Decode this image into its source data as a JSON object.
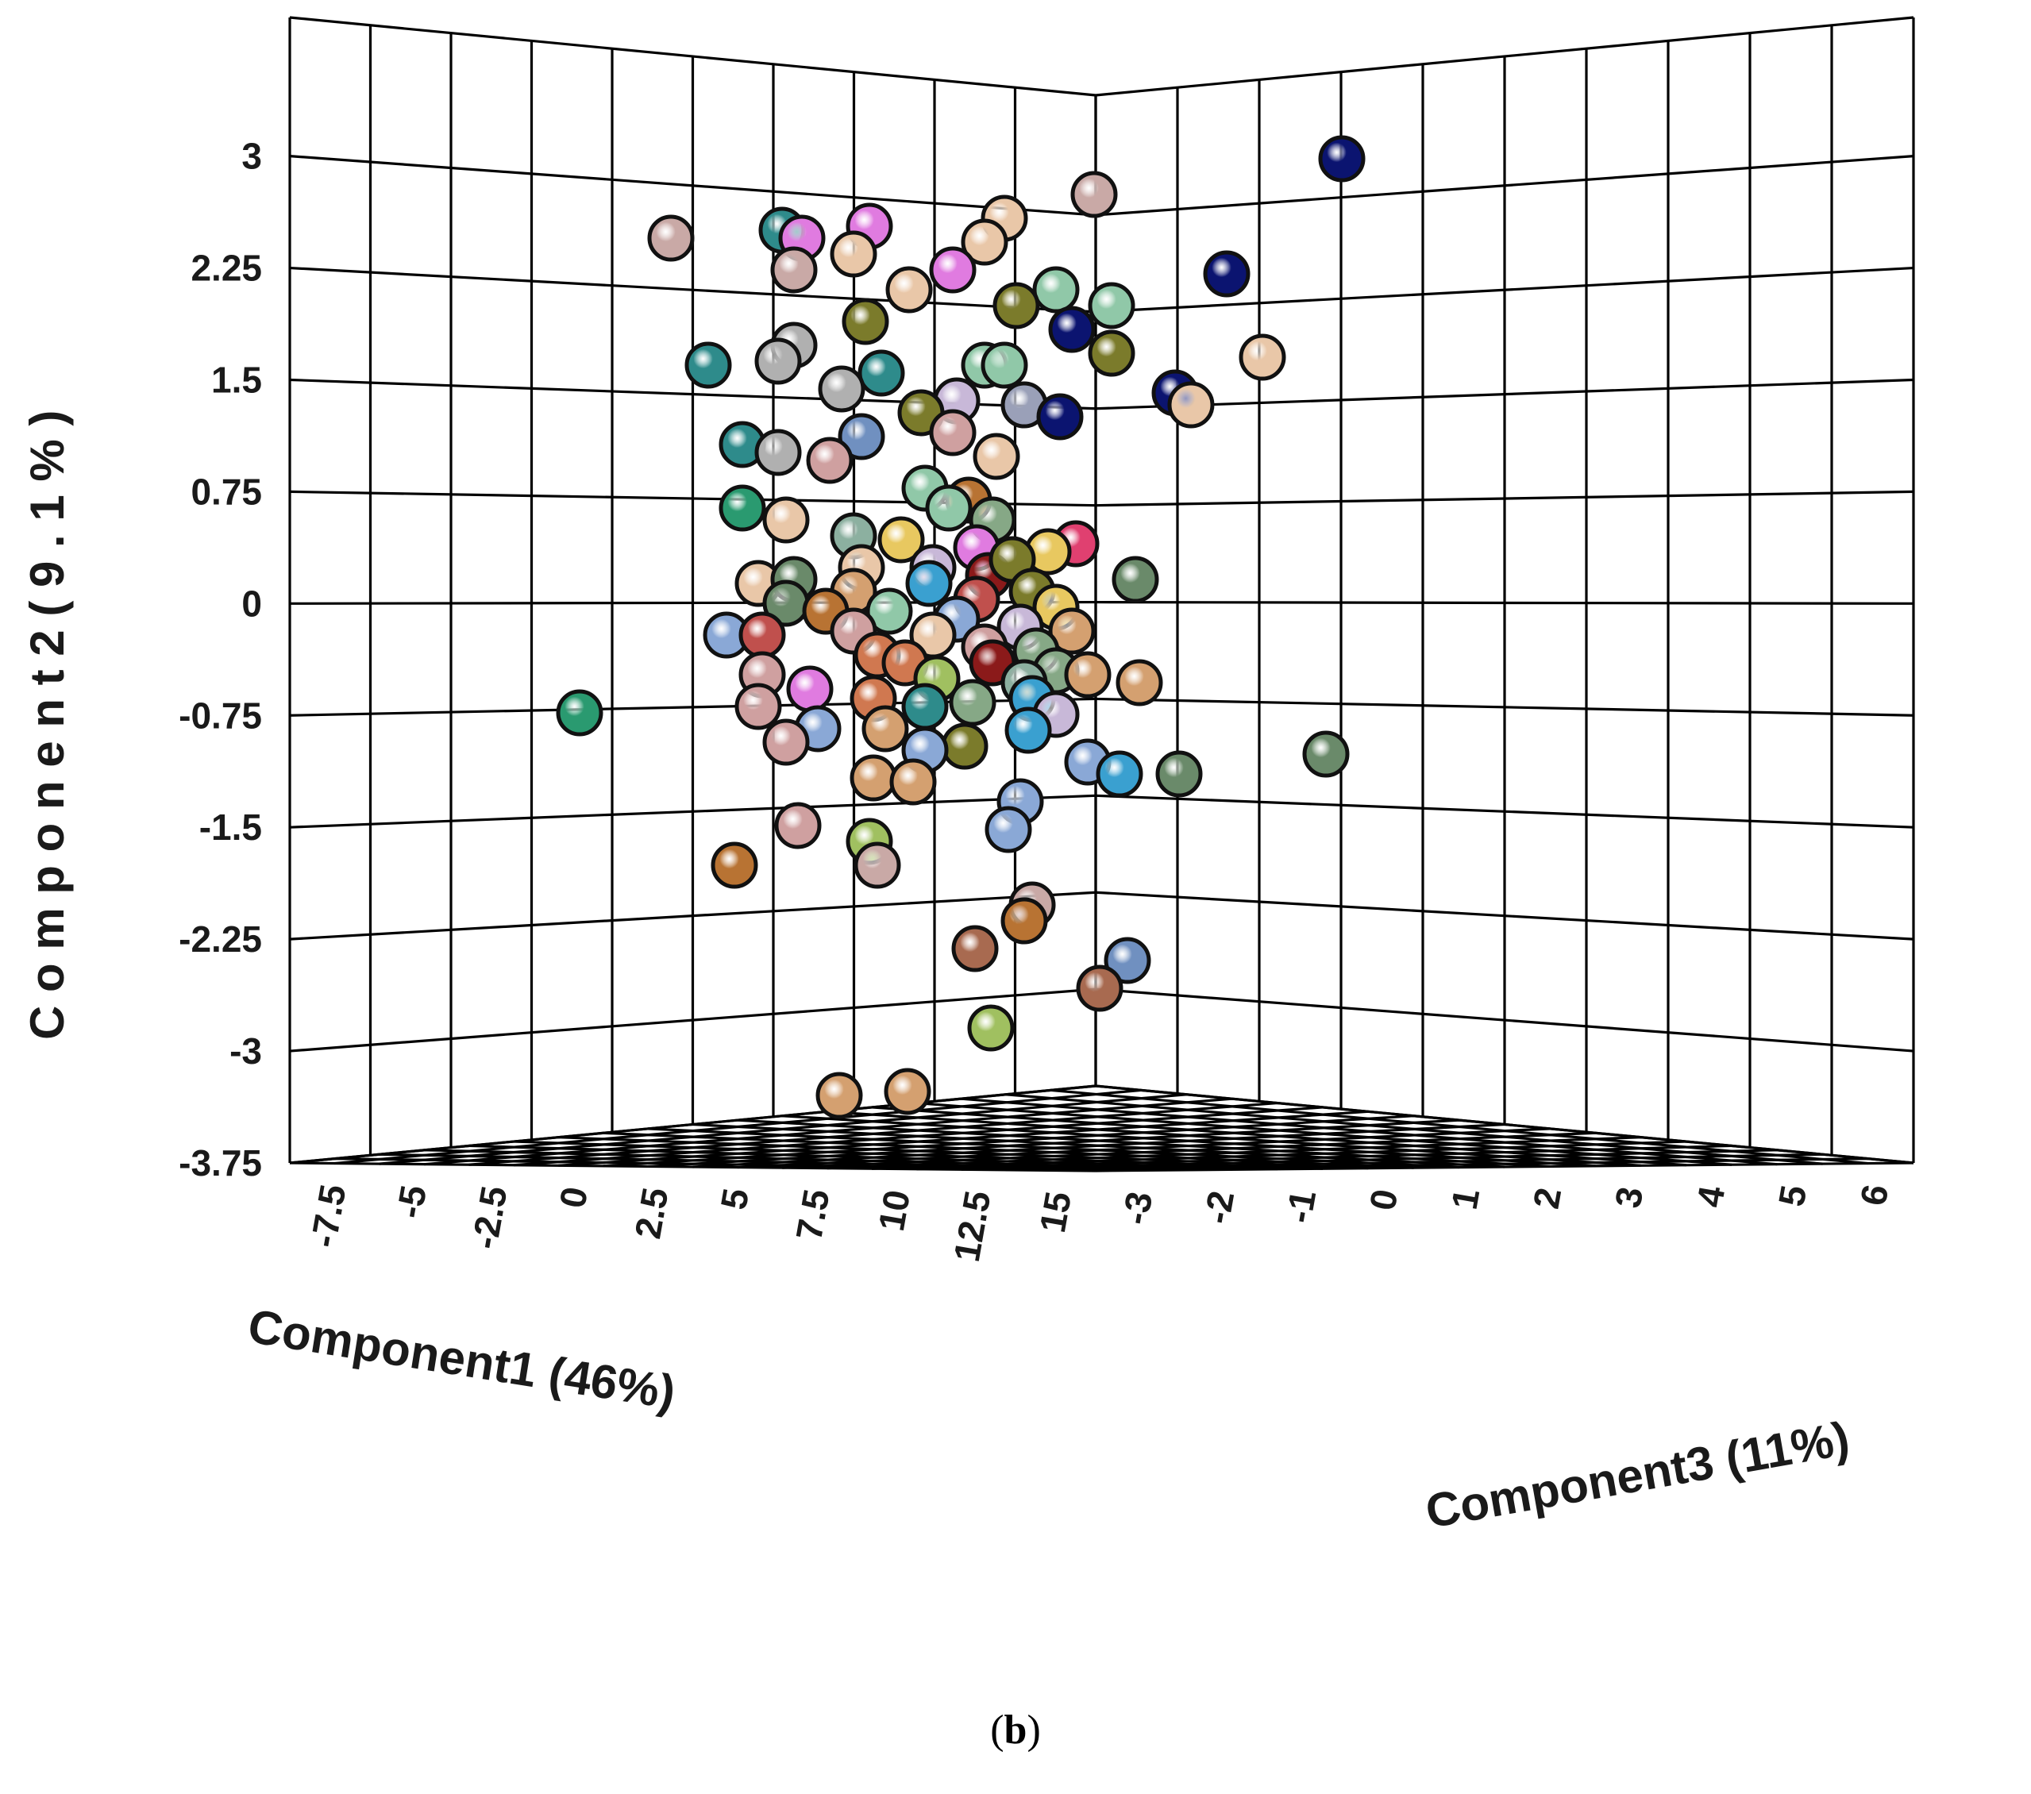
{
  "chart_data": {
    "type": "scatter3d",
    "axes": {
      "x": {
        "label": "Component1 (46%)",
        "ticks": [
          "-7.5",
          "-5",
          "-2.5",
          "0",
          "2.5",
          "5",
          "7.5",
          "10",
          "12.5",
          "15"
        ],
        "range": [
          -8.75,
          15
        ]
      },
      "y": {
        "label": "C o m p o n e n t 2  ( 9 . 1 % )",
        "ticks": [
          "3",
          "2.25",
          "1.5",
          "0.75",
          "0",
          "-0.75",
          "-1.5",
          "-2.25",
          "-3",
          "-3.75"
        ],
        "range": [
          -3.75,
          3.4
        ]
      },
      "z": {
        "label": "Component3 (11%)",
        "ticks": [
          "-3",
          "-2",
          "-1",
          "0",
          "1",
          "2",
          "3",
          "4",
          "5",
          "6"
        ],
        "range": [
          -3,
          6
        ]
      }
    },
    "grid": true,
    "legend": "none",
    "point_colors": [
      "#c9a9a6",
      "#e9c7a8",
      "#e07be0",
      "#2e8b8b",
      "#7b7b2b",
      "#90c8a8",
      "#0b1470",
      "#8aa8d6",
      "#cfa0a0",
      "#b87333",
      "#c0504d",
      "#3aa0d0",
      "#8b1a1a",
      "#e8c860",
      "#5aa86a",
      "#d4a070",
      "#9aa0b8",
      "#a0c060",
      "#2a9a70",
      "#d07850",
      "#c8b8d8",
      "#e04070",
      "#6a8a6a",
      "#86a886",
      "#b0b0b0",
      "#7090c0",
      "#a86a50",
      "#8cb0a0"
    ],
    "points": [
      {
        "y": 3.0,
        "sx": 1690,
        "sy": 200,
        "c": 6
      },
      {
        "y": 2.53,
        "sx": 1378,
        "sy": 245,
        "c": 0
      },
      {
        "y": 2.3,
        "sx": 1545,
        "sy": 345,
        "c": 6
      },
      {
        "y": 2.35,
        "sx": 845,
        "sy": 300,
        "c": 0
      },
      {
        "y": 2.35,
        "sx": 985,
        "sy": 290,
        "c": 3
      },
      {
        "y": 2.3,
        "sx": 1010,
        "sy": 300,
        "c": 2
      },
      {
        "y": 2.35,
        "sx": 1095,
        "sy": 285,
        "c": 2
      },
      {
        "y": 2.25,
        "sx": 1075,
        "sy": 320,
        "c": 1
      },
      {
        "y": 2.4,
        "sx": 1265,
        "sy": 275,
        "c": 1
      },
      {
        "y": 2.25,
        "sx": 1240,
        "sy": 305,
        "c": 1
      },
      {
        "y": 2.15,
        "sx": 1200,
        "sy": 340,
        "c": 2
      },
      {
        "y": 2.15,
        "sx": 1000,
        "sy": 340,
        "c": 0
      },
      {
        "y": 2.05,
        "sx": 1145,
        "sy": 365,
        "c": 1
      },
      {
        "y": 2.05,
        "sx": 1330,
        "sy": 365,
        "c": 5
      },
      {
        "y": 1.95,
        "sx": 1280,
        "sy": 385,
        "c": 4
      },
      {
        "y": 1.95,
        "sx": 1400,
        "sy": 385,
        "c": 5
      },
      {
        "y": 1.85,
        "sx": 1350,
        "sy": 415,
        "c": 6
      },
      {
        "y": 1.9,
        "sx": 1090,
        "sy": 405,
        "c": 4
      },
      {
        "y": 1.55,
        "sx": 1590,
        "sy": 450,
        "c": 1
      },
      {
        "y": 1.6,
        "sx": 1400,
        "sy": 445,
        "c": 4
      },
      {
        "y": 1.65,
        "sx": 1000,
        "sy": 435,
        "c": 24
      },
      {
        "y": 1.55,
        "sx": 980,
        "sy": 455,
        "c": 24
      },
      {
        "y": 1.55,
        "sx": 892,
        "sy": 460,
        "c": 3
      },
      {
        "y": 1.55,
        "sx": 1240,
        "sy": 460,
        "c": 5
      },
      {
        "y": 1.55,
        "sx": 1265,
        "sy": 460,
        "c": 5
      },
      {
        "y": 1.45,
        "sx": 1110,
        "sy": 470,
        "c": 3
      },
      {
        "y": 1.35,
        "sx": 1060,
        "sy": 490,
        "c": 24
      },
      {
        "y": 1.25,
        "sx": 1480,
        "sy": 495,
        "c": 6
      },
      {
        "y": 1.2,
        "sx": 1500,
        "sy": 510,
        "c": 1
      },
      {
        "y": 1.15,
        "sx": 1205,
        "sy": 505,
        "c": 20
      },
      {
        "y": 1.2,
        "sx": 1290,
        "sy": 510,
        "c": 16
      },
      {
        "y": 1.05,
        "sx": 1335,
        "sy": 525,
        "c": 6
      },
      {
        "y": 1.1,
        "sx": 1160,
        "sy": 520,
        "c": 4
      },
      {
        "y": 1.0,
        "sx": 1200,
        "sy": 545,
        "c": 8
      },
      {
        "y": 0.95,
        "sx": 1085,
        "sy": 550,
        "c": 25
      },
      {
        "y": 0.95,
        "sx": 935,
        "sy": 560,
        "c": 3
      },
      {
        "y": 0.9,
        "sx": 980,
        "sy": 570,
        "c": 24
      },
      {
        "y": 0.85,
        "sx": 1255,
        "sy": 575,
        "c": 1
      },
      {
        "y": 0.8,
        "sx": 1045,
        "sy": 580,
        "c": 8
      },
      {
        "y": 0.6,
        "sx": 1165,
        "sy": 615,
        "c": 5
      },
      {
        "y": 0.55,
        "sx": 1220,
        "sy": 630,
        "c": 9
      },
      {
        "y": 0.55,
        "sx": 935,
        "sy": 640,
        "c": 18
      },
      {
        "y": 0.45,
        "sx": 1195,
        "sy": 640,
        "c": 5
      },
      {
        "y": 0.45,
        "sx": 990,
        "sy": 655,
        "c": 1
      },
      {
        "y": 0.35,
        "sx": 1250,
        "sy": 655,
        "c": 23
      },
      {
        "y": 0.3,
        "sx": 1075,
        "sy": 675,
        "c": 27
      },
      {
        "y": 0.28,
        "sx": 1135,
        "sy": 680,
        "c": 13
      },
      {
        "y": 0.25,
        "sx": 1230,
        "sy": 690,
        "c": 2
      },
      {
        "y": 0.25,
        "sx": 1355,
        "sy": 685,
        "c": 21
      },
      {
        "y": 0.2,
        "sx": 1320,
        "sy": 695,
        "c": 13
      },
      {
        "y": 0.15,
        "sx": 1085,
        "sy": 715,
        "c": 1
      },
      {
        "y": 0.1,
        "sx": 1175,
        "sy": 715,
        "c": 20
      },
      {
        "y": 0.1,
        "sx": 1245,
        "sy": 725,
        "c": 12
      },
      {
        "y": 0.05,
        "sx": 1275,
        "sy": 705,
        "c": 4
      },
      {
        "y": 0.0,
        "sx": 1430,
        "sy": 730,
        "c": 22
      },
      {
        "y": 0.0,
        "sx": 955,
        "sy": 735,
        "c": 1
      },
      {
        "y": 0.0,
        "sx": 1000,
        "sy": 730,
        "c": 22
      },
      {
        "y": -0.05,
        "sx": 1170,
        "sy": 735,
        "c": 11
      },
      {
        "y": -0.1,
        "sx": 1075,
        "sy": 745,
        "c": 15
      },
      {
        "y": -0.15,
        "sx": 1230,
        "sy": 755,
        "c": 10
      },
      {
        "y": -0.15,
        "sx": 1300,
        "sy": 745,
        "c": 4
      },
      {
        "y": -0.2,
        "sx": 990,
        "sy": 760,
        "c": 22
      },
      {
        "y": -0.2,
        "sx": 1040,
        "sy": 770,
        "c": 9
      },
      {
        "y": -0.25,
        "sx": 1120,
        "sy": 770,
        "c": 5
      },
      {
        "y": -0.25,
        "sx": 1330,
        "sy": 765,
        "c": 13
      },
      {
        "y": -0.3,
        "sx": 1205,
        "sy": 780,
        "c": 7
      },
      {
        "y": -0.3,
        "sx": 1285,
        "sy": 790,
        "c": 20
      },
      {
        "y": -0.35,
        "sx": 915,
        "sy": 800,
        "c": 7
      },
      {
        "y": -0.35,
        "sx": 960,
        "sy": 800,
        "c": 10
      },
      {
        "y": -0.4,
        "sx": 1075,
        "sy": 795,
        "c": 8
      },
      {
        "y": -0.4,
        "sx": 1350,
        "sy": 795,
        "c": 15
      },
      {
        "y": -0.45,
        "sx": 1175,
        "sy": 800,
        "c": 1
      },
      {
        "y": -0.5,
        "sx": 1240,
        "sy": 815,
        "c": 8
      },
      {
        "y": -0.55,
        "sx": 1305,
        "sy": 820,
        "c": 23
      },
      {
        "y": -0.55,
        "sx": 1105,
        "sy": 825,
        "c": 19
      },
      {
        "y": -0.6,
        "sx": 1140,
        "sy": 835,
        "c": 19
      },
      {
        "y": -0.65,
        "sx": 1250,
        "sy": 835,
        "c": 12
      },
      {
        "y": -0.65,
        "sx": 1330,
        "sy": 845,
        "c": 23
      },
      {
        "y": -0.7,
        "sx": 1370,
        "sy": 850,
        "c": 15
      },
      {
        "y": -0.75,
        "sx": 960,
        "sy": 850,
        "c": 8
      },
      {
        "y": -0.75,
        "sx": 1180,
        "sy": 855,
        "c": 17
      },
      {
        "y": -0.75,
        "sx": 1435,
        "sy": 860,
        "c": 15
      },
      {
        "y": -0.8,
        "sx": 1020,
        "sy": 868,
        "c": 2
      },
      {
        "y": -0.85,
        "sx": 1290,
        "sy": 860,
        "c": 27
      },
      {
        "y": -0.85,
        "sx": 1300,
        "sy": 880,
        "c": 11
      },
      {
        "y": -0.9,
        "sx": 1100,
        "sy": 880,
        "c": 19
      },
      {
        "y": -0.9,
        "sx": 955,
        "sy": 890,
        "c": 8
      },
      {
        "y": -0.95,
        "sx": 1165,
        "sy": 890,
        "c": 3
      },
      {
        "y": -1.0,
        "sx": 1225,
        "sy": 885,
        "c": 23
      },
      {
        "y": -0.95,
        "sx": 730,
        "sy": 898,
        "c": 18
      },
      {
        "y": -1.0,
        "sx": 1030,
        "sy": 918,
        "c": 7
      },
      {
        "y": -1.0,
        "sx": 1115,
        "sy": 918,
        "c": 15
      },
      {
        "y": -1.0,
        "sx": 1330,
        "sy": 900,
        "c": 20
      },
      {
        "y": -1.05,
        "sx": 1295,
        "sy": 920,
        "c": 11
      },
      {
        "y": -1.1,
        "sx": 1215,
        "sy": 940,
        "c": 4
      },
      {
        "y": -1.1,
        "sx": 990,
        "sy": 935,
        "c": 8
      },
      {
        "y": -1.2,
        "sx": 1165,
        "sy": 945,
        "c": 7
      },
      {
        "y": -1.25,
        "sx": 1670,
        "sy": 950,
        "c": 22
      },
      {
        "y": -1.3,
        "sx": 1370,
        "sy": 960,
        "c": 7
      },
      {
        "y": -1.35,
        "sx": 1410,
        "sy": 975,
        "c": 11
      },
      {
        "y": -1.35,
        "sx": 1485,
        "sy": 975,
        "c": 22
      },
      {
        "y": -1.4,
        "sx": 1100,
        "sy": 980,
        "c": 15
      },
      {
        "y": -1.45,
        "sx": 1150,
        "sy": 985,
        "c": 15
      },
      {
        "y": -1.7,
        "sx": 1285,
        "sy": 1010,
        "c": 7
      },
      {
        "y": -1.8,
        "sx": 1270,
        "sy": 1045,
        "c": 7
      },
      {
        "y": -1.8,
        "sx": 1005,
        "sy": 1040,
        "c": 8
      },
      {
        "y": -1.9,
        "sx": 1095,
        "sy": 1060,
        "c": 17
      },
      {
        "y": -2.05,
        "sx": 1105,
        "sy": 1090,
        "c": 0
      },
      {
        "y": -2.05,
        "sx": 925,
        "sy": 1090,
        "c": 9
      },
      {
        "y": -2.2,
        "sx": 1300,
        "sy": 1140,
        "c": 0
      },
      {
        "y": -2.3,
        "sx": 1290,
        "sy": 1160,
        "c": 9
      },
      {
        "y": -2.5,
        "sx": 1228,
        "sy": 1195,
        "c": 26
      },
      {
        "y": -2.55,
        "sx": 1420,
        "sy": 1210,
        "c": 25
      },
      {
        "y": -2.7,
        "sx": 1385,
        "sy": 1245,
        "c": 26
      },
      {
        "y": -2.9,
        "sx": 1248,
        "sy": 1295,
        "c": 17
      },
      {
        "y": -3.2,
        "sx": 1057,
        "sy": 1380,
        "c": 15
      },
      {
        "y": -3.2,
        "sx": 1143,
        "sy": 1375,
        "c": 15
      }
    ]
  },
  "figure": {
    "panel_label": "b"
  }
}
